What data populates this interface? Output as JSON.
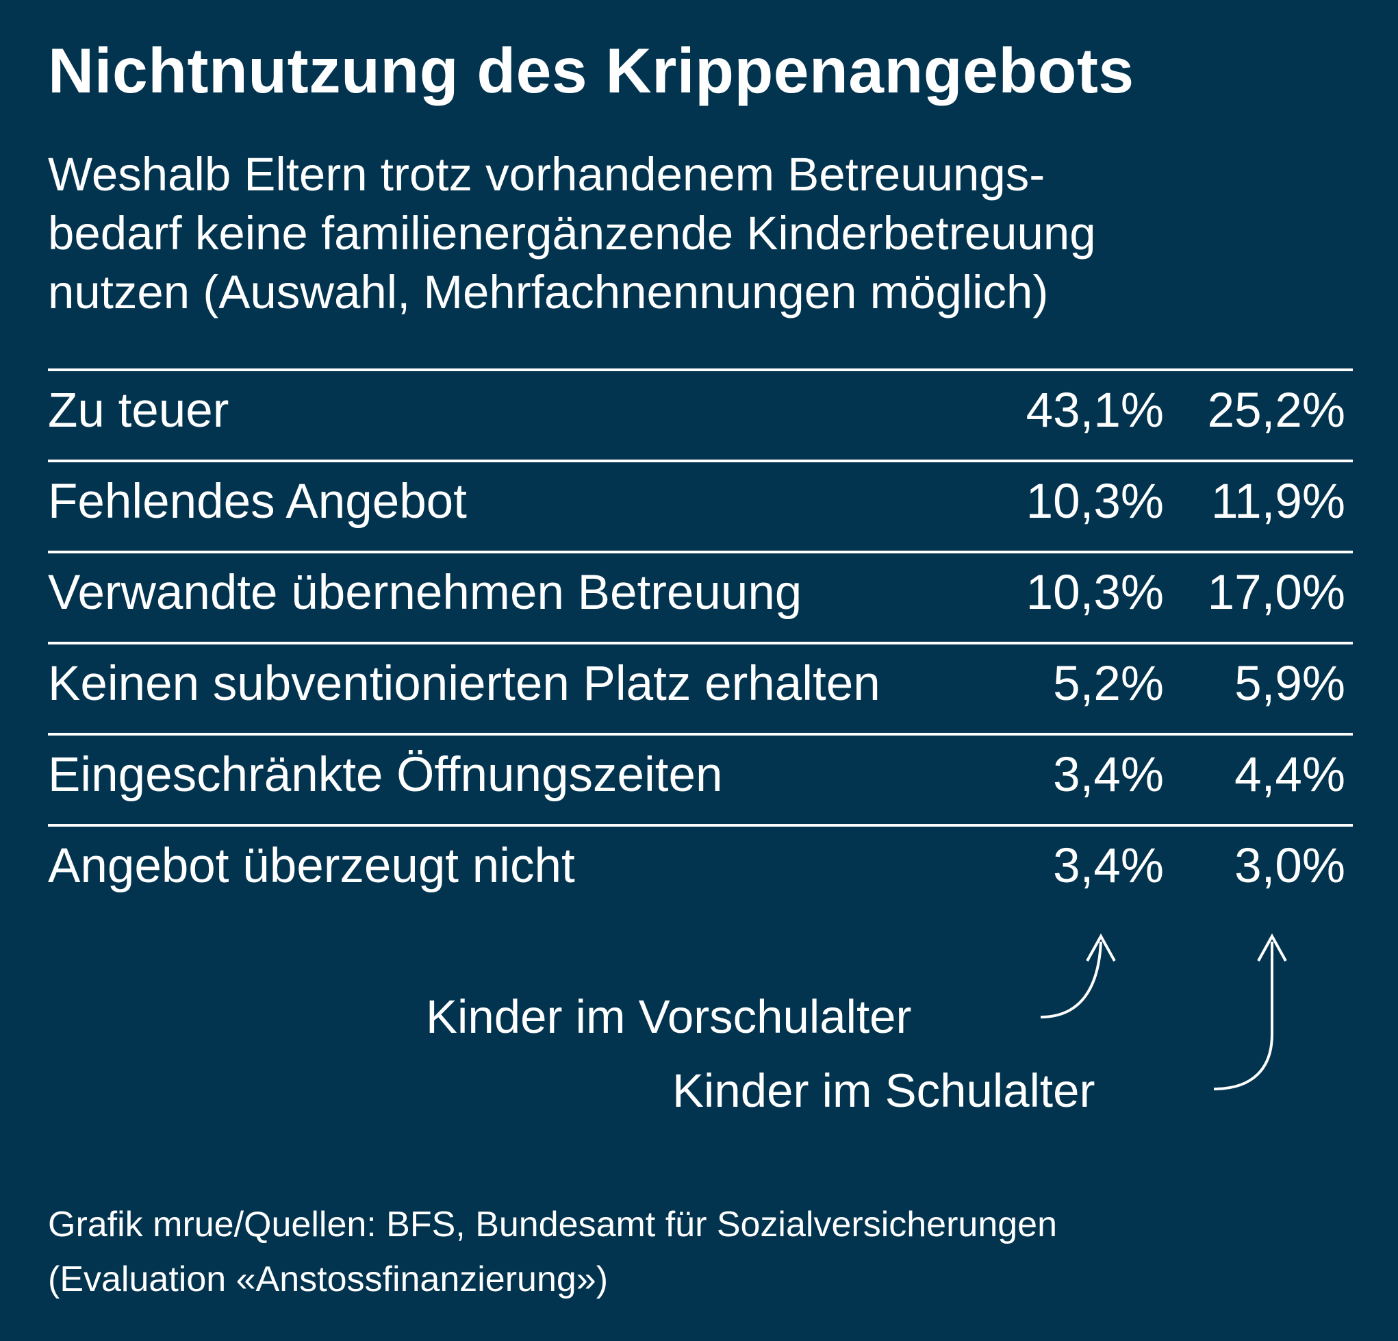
{
  "chart_data": {
    "type": "table",
    "title": "Nichtnutzung des Krippenangebots",
    "subtitle_lines": [
      "Weshalb Eltern trotz vorhandenem Betreuungs-",
      "bedarf keine familienergänzende Kinderbetreuung",
      "nutzen (Auswahl, Mehrfachnennungen möglich)"
    ],
    "series": [
      {
        "name": "Kinder im Vorschulalter",
        "values": [
          "43,1%",
          "10,3%",
          "10,3%",
          "5,2%",
          "3,4%",
          "3,4%"
        ]
      },
      {
        "name": "Kinder im Schulalter",
        "values": [
          "25,2%",
          "11,9%",
          "17,0%",
          "5,9%",
          "4,4%",
          "3,0%"
        ]
      }
    ],
    "rows": [
      {
        "label": "Zu teuer",
        "values": [
          "43,1%",
          "25,2%"
        ]
      },
      {
        "label": "Fehlendes Angebot",
        "values": [
          "10,3%",
          "11,9%"
        ]
      },
      {
        "label": "Verwandte übernehmen Betreuung",
        "values": [
          "10,3%",
          "17,0%"
        ]
      },
      {
        "label": "Keinen subventionierten Platz erhalten",
        "values": [
          "5,2%",
          "5,9%"
        ]
      },
      {
        "label": "Eingeschränkte Öffnungszeiten",
        "values": [
          "3,4%",
          "4,4%"
        ]
      },
      {
        "label": "Angebot überzeugt nicht",
        "values": [
          "3,4%",
          "3,0%"
        ]
      }
    ],
    "source_lines": [
      "Grafik mrue/Quellen: BFS, Bundesamt für Sozialversicherungen",
      "(Evaluation «Anstossfinanzierung»)"
    ]
  },
  "colors": {
    "background": "#02344f",
    "text": "#ffffff"
  }
}
